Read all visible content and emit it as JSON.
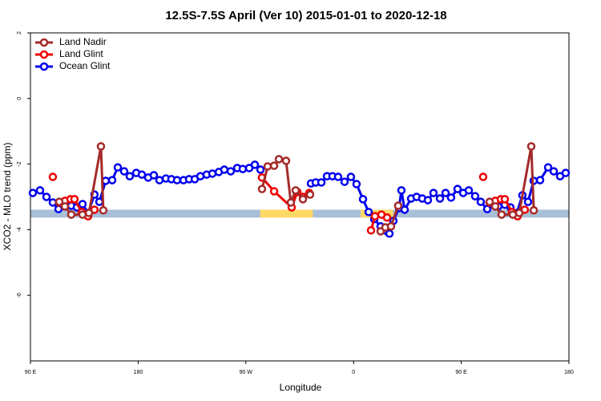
{
  "chart_data": {
    "type": "line",
    "title": "12.5S-7.5S April (Ver 10)   2015-01-01 to 2020-12-18",
    "xlabel": "Longitude",
    "ylabel": "XCO2 - MLO trend (ppm)",
    "xlim": [
      90,
      540
    ],
    "ylim": [
      -8,
      2
    ],
    "xticks": [
      {
        "value": 90,
        "label": "90 E"
      },
      180,
      {
        "value": 270,
        "label": "90 W"
      },
      {
        "value": 360,
        "label": "0"
      },
      {
        "value": 450,
        "label": "90 E"
      },
      {
        "value": 540,
        "label": "180"
      }
    ],
    "yticks": [
      -6,
      -4,
      -2,
      0,
      2
    ],
    "legend": "top-left",
    "bands": [
      {
        "ylim": [
          -3.63,
          -3.39
        ],
        "color": "#a8bfd9"
      }
    ],
    "highlights": [
      {
        "xlim": [
          282,
          326
        ],
        "color": "#ffd966"
      },
      {
        "xlim": [
          366,
          393
        ],
        "color": "#ffd966"
      }
    ],
    "series": [
      {
        "name": "Land Nadir",
        "color": "#a52a2a",
        "x": [
          114.1,
          118.8,
          124.1,
          133.5,
          138.9,
          148.9,
          150.9,
          null,
          283.5,
          288.2,
          293.6,
          297.6,
          303.6,
          307.6,
          311.6,
          317.7,
          323.7,
          null,
          382.6,
          386.6,
          391.3,
          397.3,
          null,
          473.7,
          478.4,
          483.7,
          493.1,
          498.5,
          508.5,
          510.6
        ],
        "values": [
          -3.15,
          -3.29,
          -3.54,
          -3.54,
          -3.49,
          -1.46,
          -3.41,
          null,
          -2.76,
          -2.07,
          -2.05,
          -1.85,
          -1.9,
          -3.17,
          -2.8,
          -3.07,
          -2.93,
          null,
          -4.05,
          -3.93,
          -3.9,
          -3.27,
          null,
          -3.15,
          -3.29,
          -3.54,
          -3.54,
          -3.49,
          -1.46,
          -3.41
        ]
      },
      {
        "name": "Land Glint",
        "color": "#ee0000",
        "x": [
          108.7,
          null,
          114.1,
          118.8,
          123.5,
          126.8,
          132.9,
          138.2,
          143.5,
          null,
          283.5,
          293.6,
          308.3,
          313.0,
          317.7,
          323.0,
          null,
          374.6,
          377.9,
          383.3,
          388.0,
          null,
          468.3,
          null,
          473.7,
          478.4,
          483.1,
          486.4,
          492.4,
          497.1,
          503.1
        ],
        "values": [
          -2.39,
          null,
          -3.17,
          -3.12,
          -3.07,
          -3.07,
          -3.46,
          -3.59,
          -3.39,
          null,
          -2.41,
          -2.83,
          -3.32,
          -2.85,
          -3.0,
          -2.88,
          null,
          -4.02,
          -3.59,
          -3.54,
          -3.63,
          null,
          -2.39,
          null,
          -3.17,
          -3.12,
          -3.07,
          -3.07,
          -3.46,
          -3.59,
          -3.39
        ]
      },
      {
        "name": "Ocean Glint",
        "color": "#0000ee",
        "x": [
          92.0,
          98.0,
          103.4,
          108.7,
          113.4,
          118.8,
          124.1,
          128.8,
          133.5,
          138.2,
          143.5,
          147.6,
          152.9,
          158.3,
          163.0,
          168.3,
          173.0,
          178.4,
          183.1,
          188.4,
          193.1,
          197.8,
          203.2,
          207.8,
          212.5,
          217.9,
          222.6,
          227.3,
          232.0,
          237.3,
          242.0,
          247.4,
          252.0,
          257.4,
          262.8,
          267.4,
          272.8,
          277.5,
          282.2,
          null,
          324.4,
          328.4,
          333.1,
          337.8,
          342.4,
          347.1,
          352.5,
          357.8,
          362.5,
          367.9,
          372.6,
          377.3,
          382.6,
          388.0,
          390.0,
          393.3,
          398.0,
          400.0,
          402.7,
          408.1,
          412.7,
          417.4,
          422.1,
          426.8,
          432.2,
          436.9,
          441.5,
          446.9,
          451.6,
          456.3,
          461.6,
          466.3,
          471.7,
          476.4,
          481.0,
          486.4,
          491.1,
          496.4,
          501.1,
          505.8,
          510.5,
          515.9,
          522.6,
          527.3,
          532.6,
          537.3
        ],
        "values": [
          -2.88,
          -2.8,
          -3.0,
          -3.17,
          -3.37,
          -3.29,
          -3.27,
          -3.32,
          -3.22,
          -3.49,
          -2.93,
          -3.15,
          -2.51,
          -2.49,
          -2.1,
          -2.22,
          -2.37,
          -2.27,
          -2.32,
          -2.41,
          -2.34,
          -2.49,
          -2.44,
          -2.46,
          -2.49,
          -2.49,
          -2.46,
          -2.46,
          -2.37,
          -2.32,
          -2.29,
          -2.24,
          -2.17,
          -2.22,
          -2.12,
          -2.15,
          -2.12,
          -2.02,
          -2.17,
          null,
          -2.59,
          -2.56,
          -2.56,
          -2.37,
          -2.37,
          -2.39,
          -2.54,
          -2.39,
          -2.61,
          -3.07,
          -3.46,
          -3.68,
          -3.9,
          -4.05,
          -4.12,
          -3.73,
          -3.34,
          -2.8,
          -3.39,
          -3.05,
          -3.0,
          -3.05,
          -3.1,
          -2.88,
          -3.05,
          -2.88,
          -3.02,
          -2.76,
          -2.88,
          -2.8,
          -2.98,
          -3.15,
          -3.37,
          -3.24,
          -3.29,
          -3.24,
          -3.32,
          -3.49,
          -2.95,
          -3.15,
          -2.51,
          -2.49,
          -2.1,
          -2.22,
          -2.37,
          -2.27
        ]
      }
    ]
  }
}
